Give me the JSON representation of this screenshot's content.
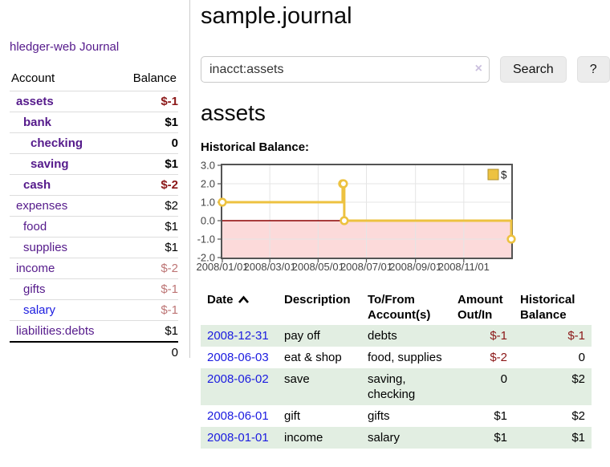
{
  "app": {
    "brand": "hledger-web",
    "nav_journal": "Journal"
  },
  "colors": {
    "visited_link": "#551a8b",
    "unvisited_link": "#1b1be0",
    "negative_strong": "#8b1717",
    "negative_soft": "#bd7575",
    "row_stripe_green": "#e2eee2",
    "button_bg": "#ececec",
    "divider": "#cccccc",
    "row_border": "#dddddd"
  },
  "sidebar": {
    "columns": [
      "Account",
      "Balance"
    ],
    "accounts": [
      {
        "name": "assets",
        "depth": 1,
        "bold": true,
        "link": "visited",
        "balance": "$-1",
        "balance_style": "neg-strong"
      },
      {
        "name": "bank",
        "depth": 2,
        "bold": true,
        "link": "visited",
        "balance": "$1",
        "balance_style": "normal"
      },
      {
        "name": "checking",
        "depth": 3,
        "bold": true,
        "link": "visited",
        "balance": "0",
        "balance_style": "normal"
      },
      {
        "name": "saving",
        "depth": 3,
        "bold": true,
        "link": "visited",
        "balance": "$1",
        "balance_style": "normal"
      },
      {
        "name": "cash",
        "depth": 2,
        "bold": true,
        "link": "visited",
        "balance": "$-2",
        "balance_style": "neg-strong"
      },
      {
        "name": "expenses",
        "depth": 1,
        "bold": false,
        "link": "visited",
        "balance": "$2",
        "balance_style": "normal"
      },
      {
        "name": "food",
        "depth": 2,
        "bold": false,
        "link": "visited",
        "balance": "$1",
        "balance_style": "normal"
      },
      {
        "name": "supplies",
        "depth": 2,
        "bold": false,
        "link": "visited",
        "balance": "$1",
        "balance_style": "normal"
      },
      {
        "name": "income",
        "depth": 1,
        "bold": false,
        "link": "visited",
        "balance": "$-2",
        "balance_style": "neg-soft"
      },
      {
        "name": "gifts",
        "depth": 2,
        "bold": false,
        "link": "visited",
        "balance": "$-1",
        "balance_style": "neg-soft"
      },
      {
        "name": "salary",
        "depth": 2,
        "bold": false,
        "link": "unvisited",
        "balance": "$-1",
        "balance_style": "neg-soft"
      },
      {
        "name": "liabilities:debts",
        "depth": 1,
        "bold": false,
        "link": "visited",
        "balance": "$1",
        "balance_style": "normal"
      }
    ],
    "total": "0"
  },
  "header": {
    "title": "sample.journal"
  },
  "search": {
    "value": "inacct:assets",
    "clear_icon": "×",
    "button_label": "Search",
    "help_label": "?"
  },
  "account_page": {
    "title": "assets",
    "chart_label": "Historical Balance:"
  },
  "chart_data": {
    "type": "line",
    "line_style": "steps",
    "title": "Historical Balance",
    "series": [
      {
        "name": "$",
        "color": "#edc240",
        "points": [
          [
            "2008-01-01",
            1
          ],
          [
            "2008-06-01",
            2
          ],
          [
            "2008-06-02",
            2
          ],
          [
            "2008-06-03",
            0
          ],
          [
            "2008-12-31",
            -1
          ]
        ]
      }
    ],
    "x_range": [
      "2008-01-01",
      "2008-12-31"
    ],
    "ylim": [
      -2,
      3
    ],
    "yticks": [
      3,
      2,
      1,
      0,
      -1,
      -2
    ],
    "ytick_labels": [
      "3.0",
      "2.0",
      "1.0",
      "0.0",
      "-1.0",
      "-2.0"
    ],
    "xticks": [
      "2008/01/01",
      "2008/03/01",
      "2008/05/01",
      "2008/07/01",
      "2008/09/01",
      "2008/11/01"
    ],
    "legend": {
      "label": "$",
      "position": "top-right"
    },
    "grid": true,
    "colors": {
      "line": "#edc240",
      "marker_fill": "#ffffff",
      "legend_box_border": "#b0922f",
      "zero_line": "#8b0000",
      "negative_region": "#fcdada",
      "grid_line": "#e5e5e5",
      "border": "#545454",
      "tick_text": "#444444"
    }
  },
  "transactions": {
    "columns": [
      {
        "line1": "Date",
        "line2": ""
      },
      {
        "line1": "Description",
        "line2": ""
      },
      {
        "line1": "To/From",
        "line2": "Account(s)"
      },
      {
        "line1": "Amount",
        "line2": "Out/In"
      },
      {
        "line1": "Historical",
        "line2": "Balance"
      }
    ],
    "sort": {
      "column": "Date",
      "direction": "ascending"
    },
    "rows": [
      {
        "date": "2008-12-31",
        "description": "pay off",
        "accounts": "debts",
        "amount": "$-1",
        "amount_negative": true,
        "balance": "$-1",
        "balance_negative": true
      },
      {
        "date": "2008-06-03",
        "description": "eat & shop",
        "accounts": "food, supplies",
        "amount": "$-2",
        "amount_negative": true,
        "balance": "0",
        "balance_negative": false
      },
      {
        "date": "2008-06-02",
        "description": "save",
        "accounts": "saving,\nchecking",
        "amount": "0",
        "amount_negative": false,
        "balance": "$2",
        "balance_negative": false
      },
      {
        "date": "2008-06-01",
        "description": "gift",
        "accounts": "gifts",
        "amount": "$1",
        "amount_negative": false,
        "balance": "$2",
        "balance_negative": false
      },
      {
        "date": "2008-01-01",
        "description": "income",
        "accounts": "salary",
        "amount": "$1",
        "amount_negative": false,
        "balance": "$1",
        "balance_negative": false
      }
    ]
  }
}
